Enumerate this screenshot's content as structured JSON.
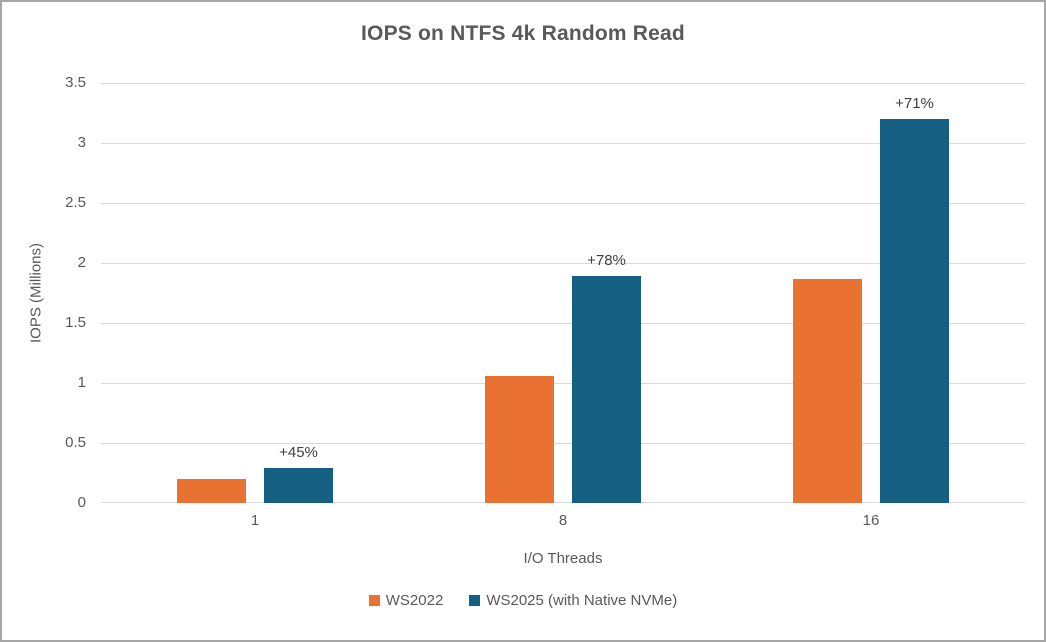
{
  "chart_data": {
    "type": "bar",
    "title": "IOPS on NTFS 4k Random Read",
    "xlabel": "I/O Threads",
    "ylabel": "IOPS (Millions)",
    "categories": [
      "1",
      "8",
      "16"
    ],
    "series": [
      {
        "name": "WS2022",
        "color": "#E97132",
        "values": [
          0.2,
          1.06,
          1.87
        ]
      },
      {
        "name": "WS2025 (with Native NVMe)",
        "color": "#156082",
        "values": [
          0.29,
          1.89,
          3.2
        ],
        "annotations": [
          "+45%",
          "+78%",
          "+71%"
        ]
      }
    ],
    "ylim": [
      0,
      3.5
    ],
    "ytick_step": 0.5,
    "grid": "horizontal",
    "legend_position": "bottom"
  },
  "colors": {
    "series_ws2022": "#E97132",
    "series_ws2025": "#156082",
    "text": "#595959",
    "annotation_text": "#404040",
    "gridline": "#D9D9D9",
    "frame_border": "#A6A6A6",
    "background": "#FFFFFF"
  }
}
